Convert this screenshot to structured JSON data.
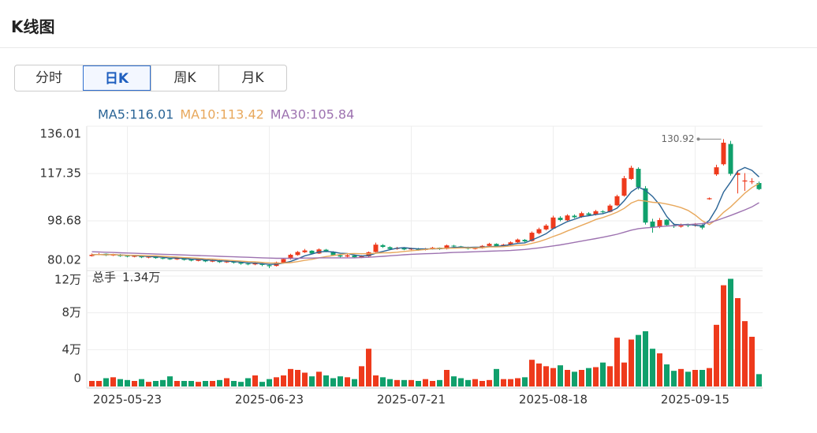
{
  "header": {
    "title": "K线图"
  },
  "tabs": [
    {
      "label": "分时",
      "active": false
    },
    {
      "label": "日K",
      "active": true
    },
    {
      "label": "周K",
      "active": false
    },
    {
      "label": "月K",
      "active": false
    }
  ],
  "chart_data": {
    "type": "candlestick",
    "categories": [
      null,
      null,
      null,
      null,
      null,
      "2025-05-23",
      null,
      null,
      null,
      null,
      null,
      null,
      null,
      null,
      null,
      null,
      null,
      null,
      null,
      null,
      null,
      null,
      null,
      null,
      null,
      "2025-06-23",
      null,
      null,
      null,
      null,
      null,
      null,
      null,
      null,
      null,
      null,
      null,
      null,
      null,
      null,
      null,
      null,
      null,
      null,
      null,
      "2025-07-21",
      null,
      null,
      null,
      null,
      null,
      null,
      null,
      null,
      null,
      null,
      null,
      null,
      null,
      null,
      null,
      null,
      null,
      null,
      null,
      "2025-08-18",
      null,
      null,
      null,
      null,
      null,
      null,
      null,
      null,
      null,
      null,
      null,
      null,
      null,
      null,
      null,
      null,
      null,
      null,
      null,
      "2025-09-15",
      null,
      null,
      null,
      null,
      null,
      null,
      null,
      null,
      null
    ],
    "open": [
      84.8,
      85.4,
      85.7,
      85.0,
      85.4,
      84.9,
      84.5,
      85.0,
      84.2,
      84.6,
      84.0,
      83.8,
      83.5,
      84.1,
      83.4,
      82.9,
      83.4,
      82.6,
      83.1,
      82.3,
      82.7,
      82.2,
      81.8,
      81.5,
      81.9,
      81.2,
      80.9,
      82.2,
      83.7,
      85.2,
      86.3,
      86.9,
      85.8,
      87.3,
      86.5,
      85.1,
      84.6,
      85.0,
      84.3,
      84.7,
      86.4,
      89.1,
      88.3,
      87.6,
      88.1,
      87.4,
      87.8,
      87.2,
      87.7,
      88.1,
      87.6,
      88.9,
      88.6,
      88.3,
      87.7,
      87.9,
      88.8,
      89.6,
      88.7,
      89.2,
      90.2,
      91.2,
      90.7,
      93.8,
      95.3,
      95.6,
      99.9,
      98.9,
      100.7,
      100.2,
      101.6,
      101.1,
      102.4,
      102.2,
      104.8,
      108.6,
      115.2,
      119.2,
      111.5,
      98.4,
      96.3,
      99.1,
      97.0,
      96.4,
      97.1,
      96.9,
      97.0,
      107.2,
      117.0,
      121.0,
      129.0,
      116.8,
      114.2,
      114.0,
      113.6
    ],
    "close": [
      85.3,
      85.6,
      85.1,
      85.4,
      84.8,
      84.6,
      85.0,
      84.3,
      84.5,
      84.0,
      83.8,
      83.6,
      84.1,
      83.3,
      83.0,
      83.4,
      82.7,
      83.1,
      82.4,
      82.6,
      82.2,
      81.8,
      81.6,
      82.0,
      81.3,
      80.8,
      82.3,
      83.6,
      85.3,
      86.4,
      87.0,
      85.8,
      87.4,
      86.6,
      85.2,
      84.6,
      85.1,
      84.3,
      84.7,
      86.3,
      89.3,
      88.4,
      87.6,
      88.0,
      87.4,
      87.8,
      87.2,
      87.7,
      88.1,
      87.5,
      89.0,
      88.6,
      88.3,
      87.7,
      87.9,
      88.8,
      89.6,
      88.7,
      89.3,
      90.2,
      91.3,
      90.6,
      94.0,
      95.4,
      96.8,
      100.0,
      99.0,
      100.8,
      100.1,
      101.7,
      101.0,
      102.5,
      102.1,
      104.7,
      108.4,
      115.5,
      119.6,
      112.0,
      98.0,
      96.2,
      99.0,
      97.0,
      96.5,
      97.0,
      96.8,
      97.2,
      96.0,
      107.6,
      119.8,
      129.5,
      117.2,
      117.5,
      114.6,
      114.3,
      111.2
    ],
    "high": [
      85.8,
      86.0,
      85.8,
      85.7,
      85.6,
      85.2,
      85.3,
      85.1,
      84.8,
      84.7,
      84.3,
      84.1,
      84.4,
      84.2,
      83.6,
      83.7,
      83.5,
      83.4,
      83.2,
      82.9,
      82.8,
      82.4,
      82.1,
      82.3,
      82.0,
      81.4,
      82.6,
      84.0,
      85.7,
      86.8,
      87.6,
      87.1,
      87.8,
      87.6,
      86.7,
      85.3,
      85.5,
      85.2,
      85.1,
      86.6,
      90.1,
      89.5,
      88.6,
      88.4,
      88.3,
      88.1,
      88.0,
      88.0,
      88.4,
      88.2,
      89.3,
      89.2,
      88.8,
      88.5,
      88.2,
      89.1,
      90.0,
      89.8,
      89.6,
      90.6,
      91.7,
      91.5,
      94.5,
      96.0,
      97.4,
      100.7,
      100.5,
      101.3,
      101.2,
      102.3,
      102.1,
      103.0,
      102.9,
      105.3,
      109.0,
      116.4,
      120.4,
      119.8,
      112.4,
      99.5,
      99.8,
      99.4,
      97.8,
      97.6,
      97.5,
      97.8,
      97.4,
      107.9,
      120.8,
      130.92,
      130.2,
      118.6,
      117.5,
      115.5,
      114.2
    ],
    "low": [
      84.6,
      85.1,
      84.8,
      84.8,
      84.5,
      84.3,
      84.3,
      84.0,
      83.9,
      83.7,
      83.5,
      83.3,
      83.3,
      83.0,
      82.7,
      82.7,
      82.4,
      82.4,
      82.1,
      82.1,
      81.8,
      81.4,
      81.2,
      81.2,
      80.8,
      80.02,
      80.7,
      82.0,
      83.4,
      84.9,
      86.0,
      85.5,
      85.6,
      86.3,
      84.9,
      84.2,
      84.3,
      84.0,
      84.0,
      84.5,
      86.2,
      88.0,
      87.3,
      87.3,
      87.1,
      87.1,
      86.9,
      87.0,
      87.4,
      87.2,
      87.4,
      88.3,
      88.0,
      87.4,
      87.4,
      87.7,
      88.6,
      88.4,
      88.4,
      89.0,
      89.9,
      90.2,
      90.5,
      93.4,
      94.9,
      95.4,
      98.5,
      98.6,
      99.7,
      99.9,
      100.6,
      100.8,
      101.6,
      102.0,
      104.5,
      108.2,
      114.8,
      111.0,
      97.2,
      94.0,
      95.8,
      96.5,
      95.9,
      96.0,
      96.2,
      96.4,
      95.3,
      107.0,
      116.4,
      120.5,
      116.5,
      109.5,
      110.5,
      113.2,
      110.8
    ],
    "up_color": "#ee3a1c",
    "down_color": "#10a06c",
    "ylim": [
      80.02,
      136.01
    ],
    "yticks": [
      80.02,
      98.68,
      117.35,
      136.01
    ],
    "grid": true,
    "ma": [
      {
        "name": "MA5",
        "legend_label": "MA5:116.01",
        "color": "#2a6496",
        "values": [
          85.3,
          85.4,
          85.3,
          85.4,
          85.2,
          85.1,
          85.0,
          84.8,
          84.6,
          84.5,
          84.3,
          84.0,
          84.0,
          83.8,
          83.6,
          83.5,
          83.3,
          83.1,
          82.9,
          82.8,
          82.6,
          82.4,
          82.1,
          82.0,
          81.8,
          81.5,
          81.6,
          82.0,
          82.7,
          83.7,
          84.9,
          85.6,
          86.4,
          86.6,
          86.4,
          85.9,
          85.8,
          85.2,
          84.8,
          85.0,
          85.9,
          86.6,
          87.3,
          87.9,
          88.1,
          87.8,
          87.6,
          87.6,
          87.6,
          87.7,
          87.9,
          88.2,
          88.3,
          88.2,
          88.3,
          88.3,
          88.5,
          88.6,
          88.9,
          89.3,
          89.8,
          90.0,
          91.1,
          92.3,
          93.6,
          95.6,
          97.0,
          98.4,
          99.3,
          100.3,
          100.7,
          101.2,
          101.5,
          102.4,
          103.7,
          106.6,
          110.1,
          112.0,
          110.7,
          108.3,
          105.0,
          100.4,
          97.3,
          97.1,
          97.3,
          96.9,
          96.7,
          98.9,
          103.5,
          110.0,
          114.0,
          118.3,
          119.7,
          118.6,
          116.01
        ]
      },
      {
        "name": "MA10",
        "legend_label": "MA10:113.42",
        "color": "#e8a85c",
        "values": [
          85.3,
          85.4,
          85.3,
          85.4,
          85.2,
          85.1,
          85.1,
          85.0,
          84.9,
          84.9,
          84.7,
          84.5,
          84.4,
          84.2,
          84.1,
          83.9,
          83.7,
          83.6,
          83.4,
          83.2,
          83.0,
          82.8,
          82.6,
          82.5,
          82.3,
          82.1,
          82.0,
          82.0,
          82.2,
          82.6,
          83.1,
          83.5,
          84.1,
          84.6,
          85.0,
          85.4,
          85.7,
          85.8,
          85.7,
          85.7,
          85.9,
          86.1,
          86.1,
          86.3,
          86.6,
          86.9,
          87.1,
          87.4,
          87.7,
          87.8,
          87.9,
          87.9,
          88.0,
          88.0,
          88.0,
          88.1,
          88.4,
          88.4,
          88.5,
          88.8,
          89.0,
          89.2,
          89.8,
          90.5,
          91.4,
          92.5,
          93.5,
          94.7,
          95.8,
          96.9,
          98.0,
          99.2,
          100.0,
          101.0,
          102.1,
          103.6,
          105.7,
          106.8,
          106.5,
          106.0,
          105.8,
          105.3,
          104.7,
          103.9,
          102.8,
          101.0,
          98.7,
          97.2,
          99.2,
          102.0,
          104.2,
          106.9,
          109.6,
          111.8,
          113.42
        ]
      },
      {
        "name": "MA30",
        "legend_label": "MA30:105.84",
        "color": "#9d72b0",
        "values": [
          86.5,
          86.4,
          86.3,
          86.2,
          86.1,
          86.0,
          85.9,
          85.8,
          85.7,
          85.6,
          85.5,
          85.4,
          85.3,
          85.2,
          85.1,
          85.0,
          84.9,
          84.8,
          84.7,
          84.6,
          84.5,
          84.4,
          84.3,
          84.2,
          84.1,
          84.0,
          83.9,
          83.9,
          83.9,
          83.9,
          84.0,
          84.0,
          84.1,
          84.1,
          84.1,
          84.1,
          84.1,
          84.1,
          84.2,
          84.3,
          84.5,
          84.7,
          84.9,
          85.1,
          85.3,
          85.5,
          85.6,
          85.7,
          85.8,
          85.9,
          86.1,
          86.2,
          86.3,
          86.4,
          86.5,
          86.6,
          86.7,
          86.8,
          86.9,
          87.0,
          87.2,
          87.4,
          87.7,
          88.0,
          88.4,
          88.8,
          89.2,
          89.7,
          90.2,
          90.7,
          91.2,
          91.7,
          92.2,
          92.8,
          93.4,
          94.2,
          95.0,
          95.6,
          95.9,
          96.1,
          96.4,
          96.6,
          96.8,
          97.0,
          97.2,
          97.4,
          97.6,
          98.0,
          98.8,
          99.8,
          100.8,
          101.9,
          103.0,
          104.2,
          105.84
        ]
      }
    ],
    "volume": {
      "caption": "总手",
      "last_label": "1.34万",
      "values": [
        0.6,
        0.6,
        0.9,
        1.0,
        0.8,
        0.7,
        0.6,
        0.8,
        0.5,
        0.6,
        0.7,
        1.1,
        0.6,
        0.6,
        0.6,
        0.5,
        0.6,
        0.6,
        0.7,
        0.9,
        0.6,
        0.5,
        0.9,
        1.2,
        0.5,
        0.8,
        1.0,
        1.2,
        1.9,
        1.8,
        1.5,
        1.1,
        1.6,
        1.2,
        0.9,
        1.1,
        1.0,
        0.8,
        2.2,
        4.1,
        1.2,
        1.0,
        0.8,
        0.7,
        0.7,
        0.7,
        0.6,
        0.8,
        0.6,
        0.7,
        1.8,
        1.1,
        0.9,
        0.7,
        0.8,
        0.6,
        0.7,
        1.9,
        0.8,
        0.8,
        0.9,
        1.0,
        2.9,
        2.5,
        2.2,
        2.0,
        2.3,
        1.8,
        1.6,
        1.8,
        2.0,
        2.1,
        2.6,
        2.2,
        5.3,
        2.6,
        5.1,
        5.6,
        6.0,
        4.1,
        3.6,
        2.4,
        1.7,
        1.9,
        1.6,
        1.8,
        1.8,
        2.0,
        6.7,
        11.0,
        11.7,
        9.6,
        7.1,
        5.4,
        1.34
      ],
      "ylim": [
        0,
        12
      ],
      "yticks": [
        0,
        {
          "value": 4,
          "label": "4万"
        },
        {
          "value": 8,
          "label": "8万"
        },
        {
          "value": 12,
          "label": "12万"
        }
      ]
    }
  }
}
